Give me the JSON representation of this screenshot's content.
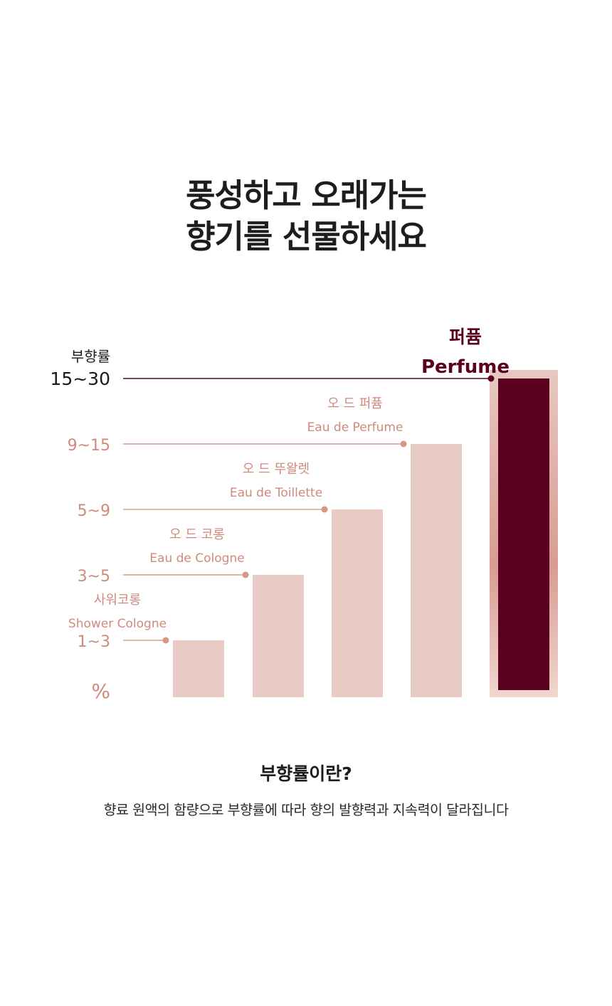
{
  "headline": {
    "line1": "풍성하고 오래가는",
    "line2": "향기를 선물하세요"
  },
  "chart_data": {
    "type": "bar",
    "ylabel": "부향률",
    "unit_label": "%",
    "categories": [
      {
        "ko": "사워코롱",
        "en": "Shower Cologne",
        "range": "1~3",
        "value": 3
      },
      {
        "ko": "오 드 코롱",
        "en": "Eau de Cologne",
        "range": "3~5",
        "value": 5
      },
      {
        "ko": "오 드 뚜왈렛",
        "en": "Eau de Toillette",
        "range": "5~9",
        "value": 9
      },
      {
        "ko": "오 드 퍼퓸",
        "en": "Eau de Perfume",
        "range": "9~15",
        "value": 15
      },
      {
        "ko": "퍼퓸",
        "en": "Perfume",
        "range": "15~30",
        "value": 30,
        "highlight": true
      }
    ],
    "colors": {
      "bar": "#e8cbc4",
      "label": "#d08a7c",
      "highlight": "#5c0020",
      "highlight_frame": "#e3bdb6"
    }
  },
  "footer": {
    "title": "부향률이란?",
    "description": "향료 원액의 함량으로 부향률에 따라 향의 발향력과 지속력이 달라집니다"
  }
}
